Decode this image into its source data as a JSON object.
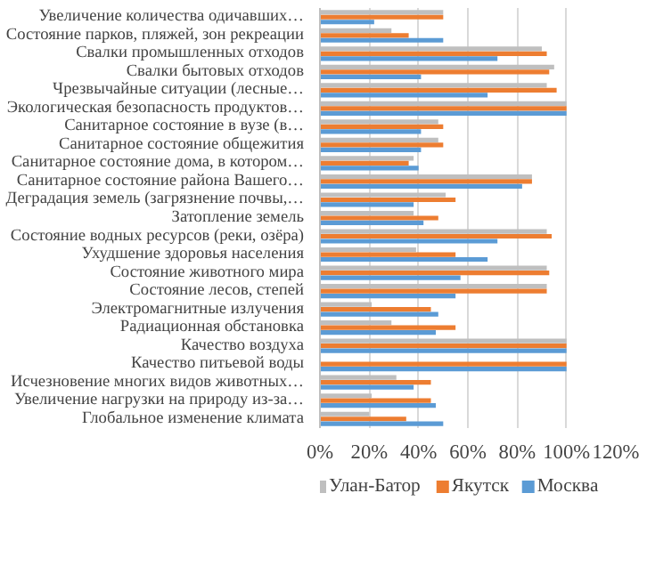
{
  "chart_data": {
    "type": "bar",
    "orientation": "horizontal",
    "categories": [
      "Увеличение количества одичавших…",
      "Состояние парков, пляжей, зон рекреации",
      "Свалки промышленных отходов",
      "Свалки бытовых отходов",
      "Чрезвычайные ситуации (лесные…",
      "Экологическая безопасность продуктов…",
      "Санитарное состояние в вузе (в…",
      "Санитарное состояние общежития",
      "Санитарное состояние дома, в котором…",
      "Санитарное состояние района Вашего…",
      "Деградация земель (загрязнение почвы,…",
      "Затопление земель",
      "Состояние водных ресурсов (реки, озёра)",
      "Ухудшение здоровья населения",
      "Состояние животного мира",
      "Состояние лесов, степей",
      "Электромагнитные излучения",
      "Радиационная обстановка",
      "Качество воздуха",
      "Качество питьевой воды",
      "Исчезновение многих видов животных…",
      "Увеличение нагрузки на природу из-за…",
      "Глобальное изменение климата"
    ],
    "series": [
      {
        "name": "Улан-Батор",
        "color": "#bfbfbf",
        "values": [
          50,
          29,
          90,
          95,
          92,
          100,
          48,
          48,
          38,
          86,
          51,
          38,
          92,
          39,
          92,
          92,
          21,
          29,
          100,
          0,
          31,
          21,
          20
        ]
      },
      {
        "name": "Якутск",
        "color": "#ed7d31",
        "values": [
          50,
          36,
          92,
          93,
          96,
          100,
          50,
          50,
          36,
          86,
          55,
          48,
          94,
          55,
          93,
          92,
          45,
          55,
          100,
          100,
          45,
          45,
          35
        ]
      },
      {
        "name": "Москва",
        "color": "#5b9bd5",
        "values": [
          22,
          50,
          72,
          41,
          68,
          100,
          41,
          41,
          40,
          82,
          38,
          42,
          72,
          68,
          57,
          55,
          48,
          47,
          100,
          100,
          38,
          47,
          50
        ]
      }
    ],
    "xlim": [
      0,
      120
    ],
    "xticks": [
      {
        "value": 0,
        "label": "0%"
      },
      {
        "value": 20,
        "label": "20%"
      },
      {
        "value": 40,
        "label": "40%"
      },
      {
        "value": 60,
        "label": "60%"
      },
      {
        "value": 80,
        "label": "80%"
      },
      {
        "value": 100,
        "label": "100%"
      },
      {
        "value": 120,
        "label": "120%"
      }
    ],
    "grid": "x",
    "legend": "bottom"
  }
}
